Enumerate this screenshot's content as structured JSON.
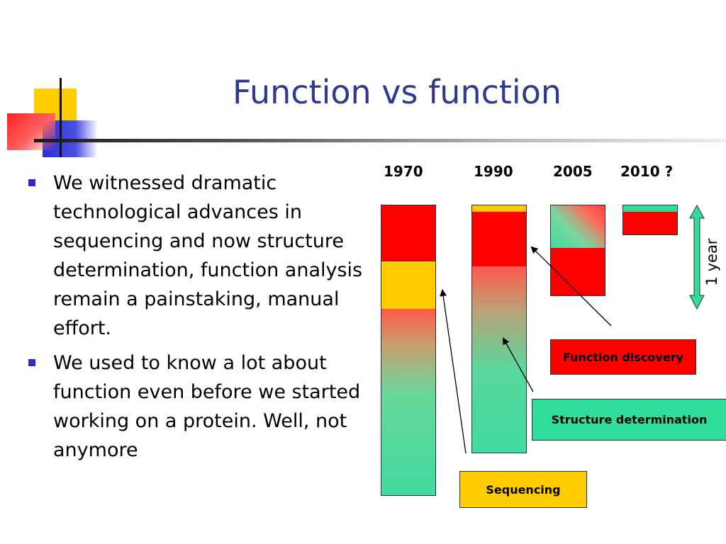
{
  "slide": {
    "title": "Function vs function",
    "bullets": [
      "We witnessed dramatic technological advances in sequencing and now structure determination, function analysis remain a painstaking, manual effort.",
      "We used to know a lot about function even before we started working on a protein. Well, not anymore"
    ]
  },
  "diagram": {
    "years": [
      "1970",
      "1990",
      "2005",
      "2010 ?"
    ],
    "labels": {
      "function_discovery": "Function discovery",
      "structure_determination": "Structure determination",
      "sequencing": "Sequencing",
      "duration": "1 year"
    },
    "colors": {
      "function_discovery": "#ff0000",
      "structure_determination": "#2fdc9a",
      "sequencing": "#ffcc00",
      "title": "#2f3a8f",
      "bullet_marker": "#2b2fbf"
    }
  }
}
